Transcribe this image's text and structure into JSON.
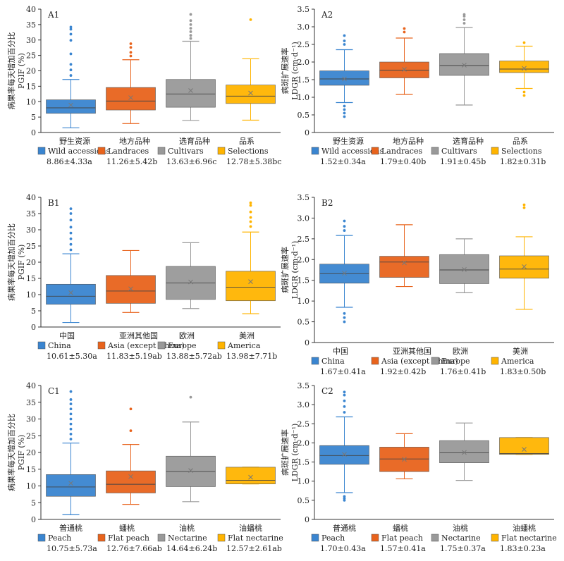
{
  "colors": [
    "#3a85d0",
    "#e8631c",
    "#999999",
    "#ffb400"
  ],
  "panels": [
    {
      "label": "A1",
      "chart_data": {
        "type": "box",
        "ylabel_cn": "病果率每天增加百分比",
        "ylabel_en": "PGIF (%)",
        "ylim": [
          0,
          40
        ],
        "yticks": [
          "0",
          "5",
          "10",
          "15",
          "20",
          "25",
          "30",
          "35",
          "40"
        ],
        "categories_cn": [
          "野生资源",
          "地方品种",
          "选育品种",
          "品系"
        ],
        "legend": [
          "Wild accessions",
          "Landraces",
          "Cultivars",
          "Selections"
        ],
        "stats": [
          "8.86±4.33a",
          "11.26±5.42b",
          "13.63±6.96c",
          "12.78±5.38bc"
        ],
        "boxes": [
          {
            "q1": 6.2,
            "median": 8.0,
            "q3": 10.6,
            "whisker_low": 1.5,
            "whisker_high": 17.2,
            "mean": 8.9,
            "outliers": [
              18.5,
              20.3,
              22.1,
              25.5,
              29.9,
              31.9,
              33.5,
              34.2
            ]
          },
          {
            "q1": 7.3,
            "median": 10.2,
            "q3": 14.6,
            "whisker_low": 2.9,
            "whisker_high": 23.6,
            "mean": 11.3,
            "outliers": [
              24.8,
              26.0,
              27.6,
              28.8
            ]
          },
          {
            "q1": 8.2,
            "median": 12.5,
            "q3": 17.2,
            "whisker_low": 3.9,
            "whisker_high": 29.6,
            "mean": 13.6,
            "outliers": [
              30.5,
              31.5,
              32.7,
              33.8,
              35.0,
              36.3,
              38.3
            ]
          },
          {
            "q1": 9.4,
            "median": 11.8,
            "q3": 15.4,
            "whisker_low": 4.0,
            "whisker_high": 23.9,
            "mean": 12.8,
            "outliers": [
              36.6
            ]
          }
        ]
      }
    },
    {
      "label": "A2",
      "chart_data": {
        "type": "box",
        "ylabel_cn": "病斑扩展速率",
        "ylabel_en": "LDGR (cm·d⁻¹)",
        "ylim": [
          0,
          3.5
        ],
        "yticks": [
          "0",
          "0.5",
          "1.0",
          "1.5",
          "2.0",
          "2.5",
          "3.0",
          "3.5"
        ],
        "categories_cn": [
          "野生资源",
          "地方品种",
          "选育品种",
          "品系"
        ],
        "legend": [
          "Wild accessions",
          "Landraces",
          "Cultivars",
          "Selections"
        ],
        "stats": [
          "1.52±0.34a",
          "1.79±0.40b",
          "1.91±0.45b",
          "1.82±0.31b"
        ],
        "boxes": [
          {
            "q1": 1.34,
            "median": 1.52,
            "q3": 1.75,
            "whisker_low": 0.85,
            "whisker_high": 2.35,
            "mean": 1.52,
            "outliers": [
              0.45,
              0.55,
              0.65,
              0.75,
              2.5,
              2.6,
              2.75
            ]
          },
          {
            "q1": 1.55,
            "median": 1.77,
            "q3": 2.0,
            "whisker_low": 1.08,
            "whisker_high": 2.68,
            "mean": 1.79,
            "outliers": [
              2.85,
              2.95
            ]
          },
          {
            "q1": 1.62,
            "median": 1.9,
            "q3": 2.24,
            "whisker_low": 0.78,
            "whisker_high": 2.98,
            "mean": 1.91,
            "outliers": [
              3.1,
              3.2,
              3.3,
              3.35
            ]
          },
          {
            "q1": 1.7,
            "median": 1.8,
            "q3": 2.03,
            "whisker_low": 1.25,
            "whisker_high": 2.45,
            "mean": 1.82,
            "outliers": [
              1.05,
              1.15,
              2.55
            ]
          }
        ]
      }
    },
    {
      "label": "B1",
      "chart_data": {
        "type": "box",
        "ylabel_cn": "病果率每天增加百分比",
        "ylabel_en": "PGIF (%)",
        "ylim": [
          0,
          40
        ],
        "yticks": [
          "0",
          "5",
          "10",
          "15",
          "20",
          "25",
          "30",
          "35",
          "40"
        ],
        "categories_cn": [
          "中国",
          "亚洲其他国",
          "欧洲",
          "美洲"
        ],
        "legend": [
          "China",
          "Asia (except China)",
          "Europe",
          "America"
        ],
        "stats": [
          "10.61±5.30a",
          "11.83±5.19ab",
          "13.88±5.72ab",
          "13.98±7.71b"
        ],
        "boxes": [
          {
            "q1": 7.0,
            "median": 9.5,
            "q3": 13.2,
            "whisker_low": 1.4,
            "whisker_high": 22.6,
            "mean": 10.6,
            "outliers": [
              23.8,
              25.5,
              27.2,
              29.0,
              30.8,
              33.0,
              35.0,
              36.5
            ]
          },
          {
            "q1": 7.3,
            "median": 11.1,
            "q3": 15.9,
            "whisker_low": 4.5,
            "whisker_high": 23.6,
            "mean": 11.8,
            "outliers": []
          },
          {
            "q1": 8.5,
            "median": 13.6,
            "q3": 18.7,
            "whisker_low": 5.7,
            "whisker_high": 26.0,
            "mean": 13.9,
            "outliers": []
          },
          {
            "q1": 8.1,
            "median": 12.3,
            "q3": 17.2,
            "whisker_low": 4.1,
            "whisker_high": 29.3,
            "mean": 14.0,
            "outliers": [
              31.0,
              32.5,
              33.8,
              35.5,
              37.5,
              38.3
            ]
          }
        ]
      }
    },
    {
      "label": "B2",
      "chart_data": {
        "type": "box",
        "ylabel_cn": "病斑扩展速率",
        "ylabel_en": "LDGR (cm·d⁻¹)",
        "ylim": [
          0,
          3.5
        ],
        "yticks": [
          "0",
          "0.5",
          "1.0",
          "1.5",
          "2.0",
          "2.5",
          "3.0",
          "3.5"
        ],
        "categories_cn": [
          "中国",
          "亚洲其他国",
          "欧洲",
          "美洲"
        ],
        "legend": [
          "China",
          "Asia (except China)",
          "Europe",
          "America"
        ],
        "stats": [
          "1.67±0.41a",
          "1.92±0.42b",
          "1.76±0.41b",
          "1.83±0.50b"
        ],
        "boxes": [
          {
            "q1": 1.43,
            "median": 1.66,
            "q3": 1.89,
            "whisker_low": 0.85,
            "whisker_high": 2.58,
            "mean": 1.67,
            "outliers": [
              0.5,
              0.6,
              0.7,
              2.7,
              2.8,
              2.93
            ]
          },
          {
            "q1": 1.57,
            "median": 1.94,
            "q3": 2.08,
            "whisker_low": 1.35,
            "whisker_high": 2.84,
            "mean": 1.92,
            "outliers": []
          },
          {
            "q1": 1.42,
            "median": 1.75,
            "q3": 2.12,
            "whisker_low": 1.2,
            "whisker_high": 2.5,
            "mean": 1.76,
            "outliers": []
          },
          {
            "q1": 1.55,
            "median": 1.77,
            "q3": 2.09,
            "whisker_low": 0.8,
            "whisker_high": 2.55,
            "mean": 1.83,
            "outliers": [
              3.25,
              3.32
            ]
          }
        ]
      }
    },
    {
      "label": "C1",
      "chart_data": {
        "type": "box",
        "ylabel_cn": "病果率每天增加百分比",
        "ylabel_en": "PGIF (%)",
        "ylim": [
          0,
          40
        ],
        "yticks": [
          "0",
          "5",
          "10",
          "15",
          "20",
          "25",
          "30",
          "35",
          "40"
        ],
        "categories_cn": [
          "普通桃",
          "蟠桃",
          "油桃",
          "油蟠桃"
        ],
        "legend": [
          "Peach",
          "Flat peach",
          "Nectarine",
          "Flat nectarine"
        ],
        "stats": [
          "10.75±5.73a",
          "12.76±7.66ab",
          "14.64±6.24b",
          "12.57±2.61ab"
        ],
        "boxes": [
          {
            "q1": 6.9,
            "median": 9.7,
            "q3": 13.4,
            "whisker_low": 1.4,
            "whisker_high": 22.8,
            "mean": 10.8,
            "outliers": [
              24.0,
              25.5,
              27.0,
              28.5,
              30.0,
              31.5,
              33.0,
              34.5,
              35.8,
              38.2
            ]
          },
          {
            "q1": 7.9,
            "median": 10.5,
            "q3": 14.5,
            "whisker_low": 4.5,
            "whisker_high": 22.4,
            "mean": 12.8,
            "outliers": [
              26.5,
              33.0
            ]
          },
          {
            "q1": 9.8,
            "median": 14.3,
            "q3": 18.9,
            "whisker_low": 5.3,
            "whisker_high": 29.1,
            "mean": 14.6,
            "outliers": [
              36.5
            ]
          },
          {
            "q1": 10.6,
            "median": 11.7,
            "q3": 15.6,
            "whisker_low": 10.6,
            "whisker_high": 15.6,
            "mean": 12.6,
            "outliers": []
          }
        ]
      }
    },
    {
      "label": "C2",
      "chart_data": {
        "type": "box",
        "ylabel_cn": "病斑扩展速率",
        "ylabel_en": "LDGR (cm·d⁻¹)",
        "ylim": [
          0,
          3.5
        ],
        "yticks": [
          "0",
          "0.5",
          "1.0",
          "1.5",
          "2.0",
          "2.5",
          "3.0",
          "3.5"
        ],
        "categories_cn": [
          "普通桃",
          "蟠桃",
          "油桃",
          "油蟠桃"
        ],
        "legend": [
          "Peach",
          "Flat peach",
          "Nectarine",
          "Flat nectarine"
        ],
        "stats": [
          "1.70±0.43a",
          "1.57±0.41a",
          "1.75±0.37a",
          "1.83±0.23a"
        ],
        "boxes": [
          {
            "q1": 1.44,
            "median": 1.67,
            "q3": 1.93,
            "whisker_low": 0.7,
            "whisker_high": 2.68,
            "mean": 1.7,
            "outliers": [
              0.5,
              0.55,
              0.6,
              2.8,
              2.95,
              3.1,
              3.25,
              3.33
            ]
          },
          {
            "q1": 1.25,
            "median": 1.58,
            "q3": 1.89,
            "whisker_low": 1.06,
            "whisker_high": 2.24,
            "mean": 1.57,
            "outliers": []
          },
          {
            "q1": 1.48,
            "median": 1.74,
            "q3": 2.06,
            "whisker_low": 1.02,
            "whisker_high": 2.52,
            "mean": 1.75,
            "outliers": []
          },
          {
            "q1": 1.7,
            "median": 1.72,
            "q3": 2.14,
            "whisker_low": 1.7,
            "whisker_high": 2.14,
            "mean": 1.83,
            "outliers": []
          }
        ]
      }
    }
  ]
}
